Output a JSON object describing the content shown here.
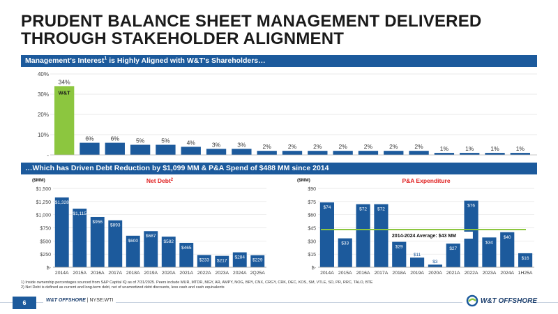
{
  "title": {
    "line1": "PRUDENT BALANCE SHEET MANAGEMENT DELIVERED",
    "line2": "THROUGH STAKEHOLDER ALIGNMENT"
  },
  "band1": {
    "text_before": "Management’s Interest",
    "sup": "1",
    "text_after": " is Highly Aligned with W&T’s Shareholders…"
  },
  "band2": {
    "text": "…Which has Driven Debt Reduction by $1,099 MM & P&A Spend of $488 MM since 2014"
  },
  "colors": {
    "primary": "#1c5a9c",
    "highlight": "#8cc63f",
    "accent_line": "#8cc63f",
    "title_red": "#e02020"
  },
  "chart_data": [
    {
      "type": "bar",
      "title": "",
      "highlight_label": "W&T",
      "ylim": [
        0,
        40
      ],
      "y_ticks": [
        "40%",
        "30%",
        "20%",
        "10%",
        "-"
      ],
      "values": [
        34,
        6,
        6,
        5,
        5,
        4,
        3,
        3,
        2,
        2,
        2,
        2,
        2,
        2,
        2,
        1,
        1,
        1,
        1
      ],
      "labels": [
        "34%",
        "6%",
        "6%",
        "5%",
        "5%",
        "4%",
        "3%",
        "3%",
        "2%",
        "2%",
        "2%",
        "2%",
        "2%",
        "2%",
        "2%",
        "1%",
        "1%",
        "1%",
        "1%"
      ]
    },
    {
      "type": "bar",
      "title": "Net Debt",
      "title_sup": "2",
      "ylabel": "($MM)",
      "ylim": [
        0,
        1500
      ],
      "y_ticks": [
        "$1,500",
        "$1,250",
        "$1,000",
        "$750",
        "$500",
        "$250",
        "$-"
      ],
      "categories": [
        "2014A",
        "2015A",
        "2016A",
        "2017A",
        "2018A",
        "2019A",
        "2020A",
        "2021A",
        "2022A",
        "2023A",
        "2024A",
        "2Q25A"
      ],
      "values": [
        1328,
        1115,
        956,
        893,
        600,
        687,
        582,
        465,
        233,
        217,
        284,
        229
      ],
      "labels": [
        "$1,328",
        "$1,115",
        "$956",
        "$893",
        "$600",
        "$687",
        "$582",
        "$465",
        "$233",
        "$217",
        "$284",
        "$229"
      ]
    },
    {
      "type": "bar",
      "title": "P&A Expenditure",
      "ylabel": "($MM)",
      "ylim": [
        0,
        90
      ],
      "y_ticks": [
        "$90",
        "$75",
        "$60",
        "$45",
        "$30",
        "$15",
        "$-"
      ],
      "categories": [
        "2014A",
        "2015A",
        "2016A",
        "2017A",
        "2018A",
        "2019A",
        "2020A",
        "2021A",
        "2022A",
        "2023A",
        "2024A",
        "1H25A"
      ],
      "values": [
        74,
        33,
        72,
        72,
        29,
        11,
        3,
        27,
        76,
        34,
        40,
        16
      ],
      "labels": [
        "$74",
        "$33",
        "$72",
        "$72",
        "$29",
        "$11",
        "$3",
        "$27",
        "$76",
        "$34",
        "$40",
        "$16"
      ],
      "average": 43,
      "average_label": "2014-2024 Average: $43 MM"
    }
  ],
  "footnotes": [
    "1)   Inside ownership percentages sourced from S&P Capital IQ as of 7/31/2025. Peers include MUR, MTDR, MGY, AR, AMPY, NOG, BRY, CNX, CRGY, CRK, DEC, KOS, SM, VTLE, SD, PR, RRC, TALO, BTE",
    "2)   Net Debt is defined as current and long-term debt, net of unamortized debt discounts, less cash and cash equivalents"
  ],
  "footer": {
    "page": "6",
    "brand": "W&T OFFSHORE",
    "separator": " | ",
    "ticker": "NYSE:WTI",
    "logo_text": "W&T OFFSHORE"
  }
}
